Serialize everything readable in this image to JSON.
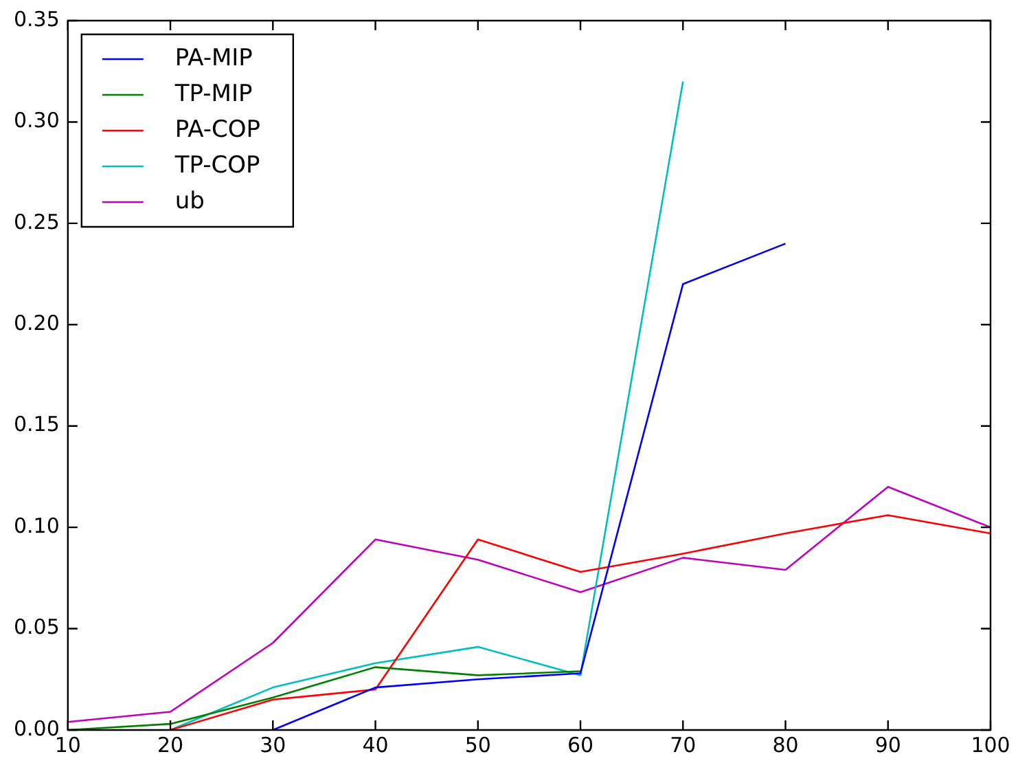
{
  "chart_data": {
    "type": "line",
    "x": [
      10,
      20,
      30,
      40,
      50,
      60,
      70,
      80,
      90,
      100
    ],
    "series": [
      {
        "name": "PA-MIP",
        "color": "#0000ff",
        "values": [
          null,
          null,
          0,
          0.021,
          0.025,
          0.028,
          0.22,
          0.24,
          null,
          null
        ]
      },
      {
        "name": "TP-MIP",
        "color": "#008000",
        "values": [
          0,
          0.003,
          0.016,
          0.031,
          0.027,
          0.029,
          null,
          null,
          null,
          null
        ]
      },
      {
        "name": "PA-COP",
        "color": "#ff0000",
        "values": [
          null,
          0,
          0.015,
          0.02,
          0.094,
          0.078,
          0.087,
          0.097,
          0.106,
          0.097
        ]
      },
      {
        "name": "TP-COP",
        "color": "#00bfbf",
        "values": [
          null,
          0,
          0.021,
          0.033,
          0.041,
          0.027,
          0.32,
          null,
          null,
          null
        ]
      },
      {
        "name": "ub",
        "color": "#bf00bf",
        "values": [
          0.004,
          0.009,
          0.043,
          0.094,
          0.084,
          0.068,
          0.085,
          0.079,
          0.12,
          0.1
        ]
      }
    ],
    "xlim": [
      10,
      100
    ],
    "xticks": [
      10,
      20,
      30,
      40,
      50,
      60,
      70,
      80,
      90,
      100
    ],
    "ylim": [
      0,
      0.35
    ],
    "yticks": [
      {
        "value": 0,
        "label": "0.00"
      },
      {
        "value": 0.05,
        "label": "0.05"
      },
      {
        "value": 0.1,
        "label": "0.10"
      },
      {
        "value": 0.15,
        "label": "0.15"
      },
      {
        "value": 0.2,
        "label": "0.20"
      },
      {
        "value": 0.25,
        "label": "0.25"
      },
      {
        "value": 0.3,
        "label": "0.30"
      },
      {
        "value": 0.35,
        "label": "0.35"
      }
    ],
    "grid": false,
    "legend": "top left",
    "marker": "none",
    "line_style": "solid"
  }
}
